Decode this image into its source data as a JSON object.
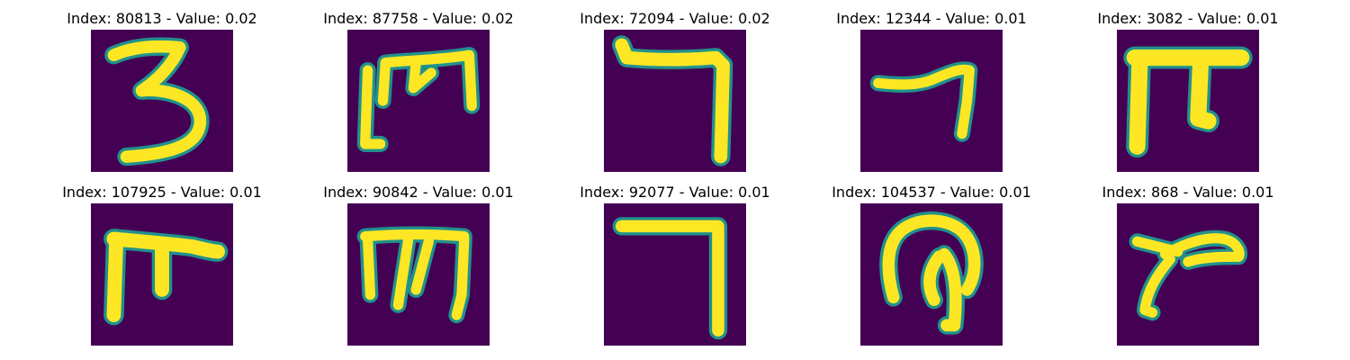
{
  "colors": {
    "background": "#440154",
    "stroke_edge": "#21918c",
    "stroke_core": "#fde725"
  },
  "panels": [
    {
      "index": "80813",
      "value": "0.02",
      "glyph_icon": "handwritten-3-icon"
    },
    {
      "index": "87758",
      "value": "0.02",
      "glyph_icon": "handwritten-m-icon"
    },
    {
      "index": "72094",
      "value": "0.02",
      "glyph_icon": "handwritten-7-icon"
    },
    {
      "index": "12344",
      "value": "0.01",
      "glyph_icon": "handwritten-7-icon"
    },
    {
      "index": "3082",
      "value": "0.01",
      "glyph_icon": "handwritten-pi-icon"
    },
    {
      "index": "107925",
      "value": "0.01",
      "glyph_icon": "handwritten-pi-icon"
    },
    {
      "index": "90842",
      "value": "0.01",
      "glyph_icon": "handwritten-m-icon"
    },
    {
      "index": "92077",
      "value": "0.01",
      "glyph_icon": "handwritten-7-icon"
    },
    {
      "index": "104537",
      "value": "0.01",
      "glyph_icon": "handwritten-loop-icon"
    },
    {
      "index": "868",
      "value": "0.01",
      "glyph_icon": "handwritten-r-icon"
    }
  ]
}
